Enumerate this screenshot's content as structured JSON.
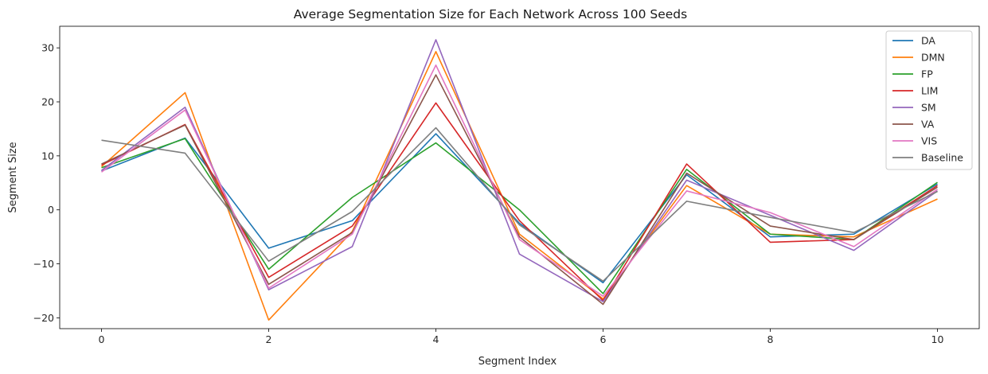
{
  "chart_data": {
    "type": "line",
    "title": "Average Segmentation Size for Each Network Across 100 Seeds",
    "xlabel": "Segment Index",
    "ylabel": "Segment Size",
    "xlim": [
      -0.5,
      10.5
    ],
    "ylim": [
      -22,
      34
    ],
    "xticks": [
      0,
      2,
      4,
      6,
      8,
      10
    ],
    "yticks": [
      -20,
      -10,
      0,
      10,
      20,
      30
    ],
    "grid": false,
    "legend_position": "top-right",
    "x": [
      0,
      1,
      2,
      3,
      4,
      5,
      6,
      7,
      8,
      9,
      10
    ],
    "series": [
      {
        "name": "DA",
        "color": "#1f77b4",
        "values": [
          7.2,
          13.3,
          -7.1,
          -2.0,
          14.1,
          -2.5,
          -13.5,
          6.5,
          -5.0,
          -4.5,
          4.8
        ]
      },
      {
        "name": "DMN",
        "color": "#ff7f0e",
        "values": [
          8.0,
          21.7,
          -20.4,
          -4.0,
          29.3,
          -4.5,
          -16.5,
          4.5,
          -4.5,
          -5.0,
          2.0
        ]
      },
      {
        "name": "FP",
        "color": "#2ca02c",
        "values": [
          7.8,
          13.2,
          -11.0,
          2.3,
          12.4,
          0.0,
          -15.5,
          7.5,
          -4.5,
          -5.5,
          5.1
        ]
      },
      {
        "name": "LIM",
        "color": "#d62728",
        "values": [
          8.3,
          15.8,
          -12.5,
          -3.0,
          19.8,
          -2.0,
          -16.8,
          8.5,
          -6.0,
          -5.5,
          4.5
        ]
      },
      {
        "name": "SM",
        "color": "#9467bd",
        "values": [
          7.3,
          19.0,
          -14.8,
          -6.8,
          31.5,
          -8.2,
          -17.0,
          5.5,
          -1.0,
          -7.5,
          3.5
        ]
      },
      {
        "name": "VA",
        "color": "#8c564b",
        "values": [
          8.5,
          15.7,
          -13.8,
          -4.2,
          25.0,
          -5.0,
          -17.5,
          6.8,
          -3.0,
          -5.5,
          4.2
        ]
      },
      {
        "name": "VIS",
        "color": "#e377c2",
        "values": [
          7.0,
          18.5,
          -14.5,
          -4.5,
          26.8,
          -5.5,
          -16.0,
          3.5,
          -0.5,
          -6.8,
          3.8
        ]
      },
      {
        "name": "Baseline",
        "color": "#7f7f7f",
        "values": [
          12.9,
          10.5,
          -9.5,
          -0.3,
          15.2,
          -2.8,
          -13.2,
          1.6,
          -1.4,
          -4.2,
          3.4
        ]
      }
    ]
  }
}
